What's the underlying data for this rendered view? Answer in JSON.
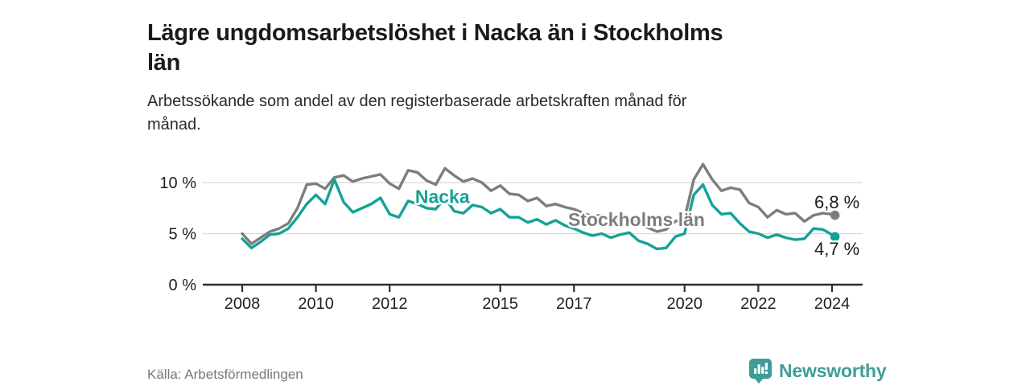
{
  "header": {
    "title": "Lägre ungdomsarbetslöshet i Nacka än i Stockholms\nlän",
    "subtitle": "Arbetssökande som andel av den registerbaserade arbetskraften månad för\nmånad."
  },
  "footer": {
    "source": "Källa: Arbetsförmedlingen",
    "logo_text": "Newsworthy"
  },
  "colors": {
    "nacka": "#14a296",
    "stockholm": "#7d7d7d",
    "label_text": "#1c1c1c",
    "axis": "#2e2e2e",
    "grid": "#dcdcdc",
    "tick_text": "#1f1f1f",
    "logo": "#3f9c98"
  },
  "chart_data": {
    "type": "line",
    "title": "Lägre ungdomsarbetslöshet i Nacka än i Stockholms län",
    "subtitle": "Arbetssökande som andel av den registerbaserade arbetskraften månad för månad.",
    "xlabel": "",
    "ylabel": "",
    "grid": "horizontal",
    "legend_position": "inline-annotations",
    "xlim": [
      2006.93,
      2024.83
    ],
    "ylim": [
      0,
      12.76
    ],
    "x_ticks": [
      {
        "value": 2008,
        "label": "2008"
      },
      {
        "value": 2010,
        "label": "2010"
      },
      {
        "value": 2012,
        "label": "2012"
      },
      {
        "value": 2015,
        "label": "2015"
      },
      {
        "value": 2017,
        "label": "2017"
      },
      {
        "value": 2020,
        "label": "2020"
      },
      {
        "value": 2022,
        "label": "2022"
      },
      {
        "value": 2024,
        "label": "2024"
      }
    ],
    "y_ticks": [
      {
        "value": 0,
        "label": "0 %"
      },
      {
        "value": 5,
        "label": "5 %"
      },
      {
        "value": 10,
        "label": "10 %"
      }
    ],
    "x": [
      2008.0,
      2008.25,
      2008.5,
      2008.75,
      2009.0,
      2009.25,
      2009.5,
      2009.75,
      2010.0,
      2010.25,
      2010.5,
      2010.75,
      2011.0,
      2011.25,
      2011.5,
      2011.75,
      2012.0,
      2012.25,
      2012.5,
      2012.75,
      2013.0,
      2013.25,
      2013.5,
      2013.75,
      2014.0,
      2014.25,
      2014.5,
      2014.75,
      2015.0,
      2015.25,
      2015.5,
      2015.75,
      2016.0,
      2016.25,
      2016.5,
      2016.75,
      2017.0,
      2017.25,
      2017.5,
      2017.75,
      2018.0,
      2018.25,
      2018.5,
      2018.75,
      2019.0,
      2019.25,
      2019.5,
      2019.75,
      2020.0,
      2020.25,
      2020.5,
      2020.75,
      2021.0,
      2021.25,
      2021.5,
      2021.75,
      2022.0,
      2022.25,
      2022.5,
      2022.75,
      2023.0,
      2023.25,
      2023.5,
      2023.75,
      2024.0,
      2024.08
    ],
    "series": [
      {
        "name": "Stockholms län",
        "color_key": "stockholm",
        "end_label": "6,8 %",
        "end_value": 6.8,
        "values": [
          5.0,
          4.0,
          4.6,
          5.2,
          5.5,
          6.0,
          7.5,
          9.8,
          9.9,
          9.4,
          10.5,
          10.7,
          10.1,
          10.4,
          10.6,
          10.8,
          9.9,
          9.4,
          11.2,
          11.0,
          10.2,
          9.8,
          11.4,
          10.7,
          10.1,
          10.4,
          10.0,
          9.2,
          9.7,
          8.9,
          8.8,
          8.2,
          8.5,
          7.7,
          7.9,
          7.6,
          7.4,
          7.0,
          6.7,
          6.8,
          6.3,
          6.5,
          6.6,
          5.9,
          5.6,
          5.2,
          5.4,
          6.2,
          6.5,
          10.3,
          11.8,
          10.3,
          9.2,
          9.5,
          9.3,
          8.0,
          7.6,
          6.6,
          7.3,
          6.9,
          7.0,
          6.2,
          6.8,
          7.0,
          6.9,
          6.8
        ]
      },
      {
        "name": "Nacka",
        "color_key": "nacka",
        "end_label": "4,7 %",
        "end_value": 4.7,
        "values": [
          4.5,
          3.6,
          4.2,
          4.9,
          5.0,
          5.5,
          6.6,
          7.9,
          8.8,
          7.9,
          10.3,
          8.1,
          7.1,
          7.5,
          7.9,
          8.5,
          6.9,
          6.6,
          8.2,
          7.9,
          7.5,
          7.4,
          8.5,
          7.2,
          7.0,
          7.8,
          7.6,
          7.0,
          7.4,
          6.6,
          6.6,
          6.1,
          6.4,
          5.9,
          6.3,
          5.8,
          5.5,
          5.1,
          4.8,
          5.0,
          4.6,
          4.9,
          5.1,
          4.3,
          4.0,
          3.5,
          3.6,
          4.7,
          5.0,
          8.8,
          9.8,
          7.8,
          6.9,
          7.0,
          6.0,
          5.2,
          5.0,
          4.6,
          4.9,
          4.6,
          4.4,
          4.5,
          5.5,
          5.4,
          4.9,
          4.7
        ]
      }
    ],
    "annotations": [
      {
        "text": "Nacka",
        "x": 2012.69,
        "y": 8.0,
        "color_key": "nacka",
        "bold": true,
        "size": 23
      },
      {
        "text": "Stockholms län",
        "x": 2016.84,
        "y": 5.75,
        "color_key": "stockholm",
        "bold": true,
        "size": 23
      },
      {
        "text": "6,8 %",
        "x": 2023.52,
        "y": 7.5,
        "color_key": "label_text",
        "bold": false,
        "size": 22
      },
      {
        "text": "4,7 %",
        "x": 2023.52,
        "y": 2.9,
        "color_key": "label_text",
        "bold": false,
        "size": 22
      }
    ]
  }
}
